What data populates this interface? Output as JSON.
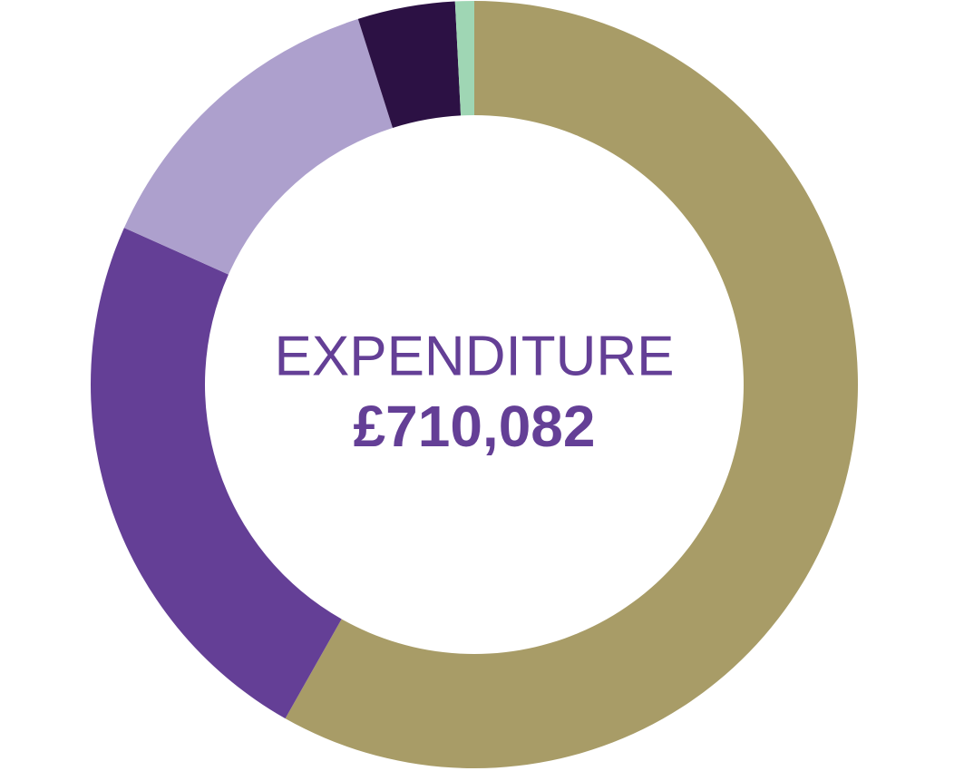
{
  "chart_data": {
    "type": "donut",
    "center_label": "EXPENDITURE",
    "center_value": "£710,082",
    "values": [
      58.2,
      23.5,
      13.4,
      4.1,
      0.8
    ],
    "colors": [
      "#a89c67",
      "#643f96",
      "#ada0cd",
      "#2c1144",
      "#9fd6b4"
    ]
  }
}
